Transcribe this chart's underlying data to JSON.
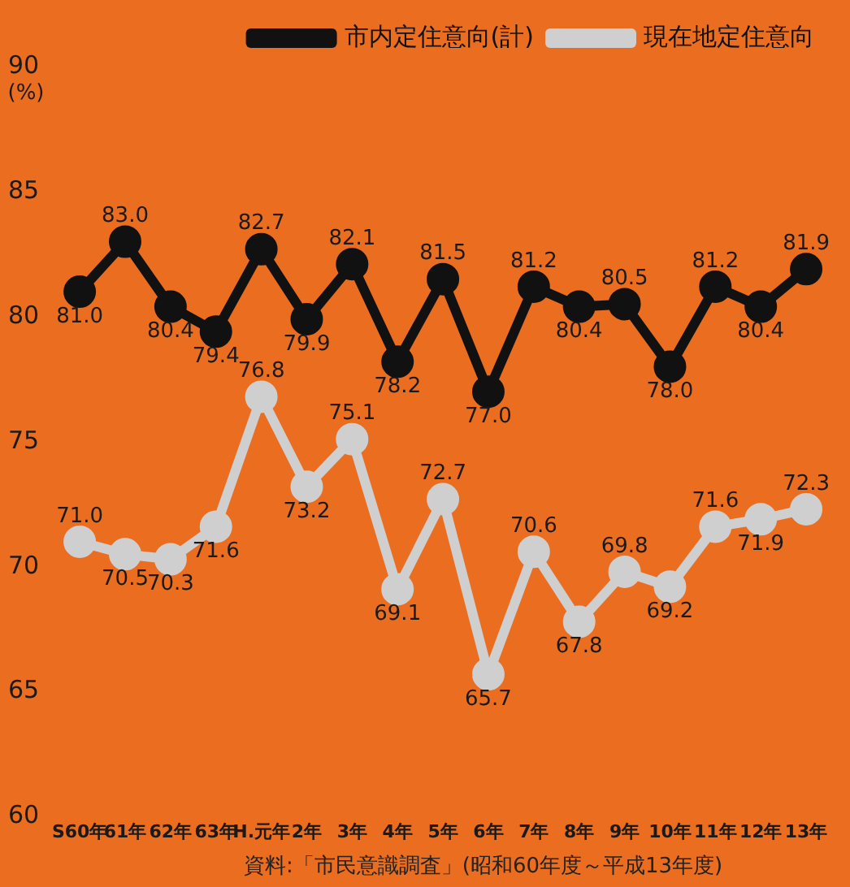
{
  "chart_data": {
    "type": "line",
    "ylabel": "(%)",
    "categories": [
      "S60年",
      "61年",
      "62年",
      "63年",
      "H.元年",
      "2年",
      "3年",
      "4年",
      "5年",
      "6年",
      "7年",
      "8年",
      "9年",
      "10年",
      "11年",
      "12年",
      "13年"
    ],
    "series": [
      {
        "name": "市内定住意向(計)",
        "color": "#111111",
        "values": [
          81.0,
          83.0,
          80.4,
          79.4,
          82.7,
          79.9,
          82.1,
          78.2,
          81.5,
          77.0,
          81.2,
          80.4,
          80.5,
          78.0,
          81.2,
          80.4,
          81.9
        ],
        "value_labels": [
          "81.0",
          "83.0",
          "80.4",
          "79.4",
          "82.7",
          "79.9",
          "82.1",
          "78.2",
          "81.5",
          "77.0",
          "81.2",
          "80.4",
          "80.5",
          "78.0",
          "81.2",
          "80.4",
          "81.9"
        ]
      },
      {
        "name": "現在地定住意向",
        "color": "#cfcfcf",
        "values": [
          71.0,
          70.5,
          70.3,
          71.6,
          76.8,
          73.2,
          75.1,
          69.1,
          72.7,
          65.7,
          70.6,
          67.8,
          69.8,
          69.2,
          71.6,
          71.9,
          72.3
        ],
        "value_labels": [
          "71.0",
          "70.5",
          "70.3",
          "71.6",
          "76.8",
          "73.2",
          "75.1",
          "69.1",
          "72.7",
          "65.7",
          "70.6",
          "67.8",
          "69.8",
          "69.2",
          "71.6",
          "71.9",
          "72.3"
        ]
      }
    ],
    "ylim": [
      60,
      90
    ],
    "yticks": [
      60,
      65,
      70,
      75,
      80,
      85,
      90
    ],
    "grid": false,
    "legend": "top right",
    "marker": "circle",
    "line_style": "solid",
    "annotations": [
      "資料:「市民意識調査」(昭和60年度～平成13年度)"
    ]
  }
}
